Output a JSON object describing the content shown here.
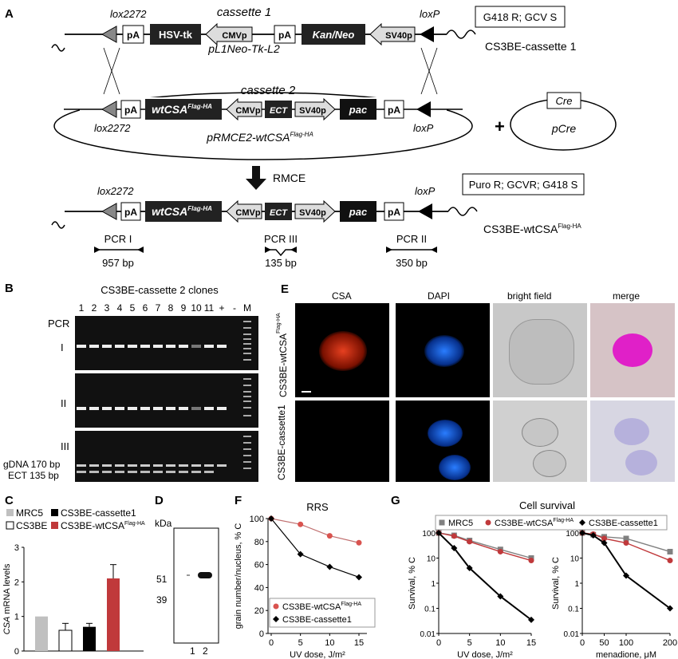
{
  "panels": {
    "A": "A",
    "B": "B",
    "C": "C",
    "D": "D",
    "E": "E",
    "F": "F",
    "G": "G"
  },
  "panelA": {
    "cassette1_title": "cassette 1",
    "cassette1_plasmid": "pL1Neo-Tk-L2",
    "lox2272": "lox2272",
    "loxP": "loxP",
    "pA": "pA",
    "hsv_tk": "HSV-tk",
    "cmvp": "CMVp",
    "kan_neo": "Kan/Neo",
    "sv40p": "SV40p",
    "ect": "ECT",
    "pac": "pac",
    "wtcsa": "wtCSA",
    "wtcsa_sup": "Flag-HA",
    "cassette1_name": "CS3BE-cassette 1",
    "cassette1_pheno": "G418 R; GCV S",
    "cassette2_title": "cassette 2",
    "cassette2_plasmid": "pRMCE2-wtCSA",
    "cassette2_plasmid_sup": "Flag-HA",
    "plus": "+",
    "cre": "Cre",
    "pcre": "pCre",
    "rmce": "RMCE",
    "final_pheno": "Puro R; GCVR; G418 S",
    "final_name": "CS3BE-wtCSA",
    "final_name_sup": "Flag-HA",
    "pcr1": "PCR I",
    "pcr1_bp": "957 bp",
    "pcr3": "PCR III",
    "pcr3_bp": "135 bp",
    "pcr2": "PCR II",
    "pcr2_bp": "350 bp"
  },
  "panelB": {
    "title": "CS3BE-cassette 2 clones",
    "lanes": [
      "1",
      "2",
      "3",
      "4",
      "5",
      "6",
      "7",
      "8",
      "9",
      "10",
      "11",
      "+",
      "-",
      "M"
    ],
    "pcr_label": "PCR",
    "rows": [
      "I",
      "II",
      "III"
    ],
    "band1": "gDNA 170 bp",
    "band2": "ECT 135 bp"
  },
  "panelC": {
    "legend": [
      "MRC5",
      "CS3BE",
      "CS3BE-cassette1",
      "CS3BE-wtCSA"
    ],
    "legend_sup": "Flag-HA",
    "ylabel": "CSA mRNA levels",
    "yticks": [
      "0",
      "1",
      "2",
      "3"
    ]
  },
  "panelD": {
    "unit": "kDa",
    "markers": [
      "51",
      "39"
    ],
    "lanes": [
      "1",
      "2"
    ]
  },
  "panelE": {
    "columns": [
      "CSA",
      "DAPI",
      "bright field",
      "merge"
    ],
    "rows": [
      "CS3BE-wtCSA",
      "CS3BE-cassette1"
    ],
    "row1_sup": "Flag-HA"
  },
  "panelF_text": {
    "ylabel": "grain number/nucleus, % C",
    "legend1": "CS3BE-wtCSA",
    "legend1_sup": "Flag-HA",
    "legend2": "CS3BE-cassette1"
  },
  "panelG_text": {
    "legend": [
      "MRC5",
      "CS3BE-wtCSA",
      "CS3BE-cassette1"
    ],
    "legend_sup": "Flag-HA",
    "ylabel": "Survival, % C",
    "xlabel_left": "UV dose, J/m²",
    "xlabel_right": "menadione, μM"
  },
  "chart_data": [
    {
      "type": "bar",
      "categories": [
        "MRC5",
        "CS3BE",
        "CS3BE-cassette1",
        "CS3BE-wtCSA"
      ],
      "values": [
        1.0,
        0.6,
        0.7,
        2.1
      ],
      "errors": [
        0,
        0.2,
        0.1,
        0.4
      ],
      "ylabel": "CSA mRNA levels",
      "ylim": [
        0,
        3
      ],
      "colors": [
        "#c0c0c0",
        "#ffffff",
        "#000000",
        "#c0393b"
      ]
    },
    {
      "type": "line",
      "title": "RRS",
      "xlabel": "UV dose, J/m²",
      "ylabel": "grain number/nucleus, % C",
      "x": [
        0,
        5,
        10,
        15
      ],
      "ylim": [
        0,
        100
      ],
      "xticks": [
        "0",
        "5",
        "10",
        "15"
      ],
      "yticks": [
        "0",
        "20",
        "40",
        "60",
        "80",
        "100"
      ],
      "series": [
        {
          "name": "CS3BE-wtCSA Flag-HA",
          "values": [
            100,
            95,
            85,
            79
          ],
          "color": "#d9534f",
          "marker": "circle"
        },
        {
          "name": "CS3BE-cassette1",
          "values": [
            100,
            69,
            58,
            49
          ],
          "color": "#000000",
          "marker": "diamond"
        }
      ]
    },
    {
      "type": "line",
      "title": "Cell survival",
      "xlabel": "UV dose, J/m²",
      "ylabel": "Survival, % C",
      "scale": "log",
      "x": [
        0,
        2.5,
        5,
        10,
        15
      ],
      "xticks": [
        "0",
        "5",
        "10",
        "15"
      ],
      "yticks": [
        "0.01",
        "0.1",
        "1",
        "10",
        "100"
      ],
      "series": [
        {
          "name": "MRC5",
          "values": [
            100,
            80,
            50,
            22,
            10
          ],
          "color": "#808080",
          "marker": "square"
        },
        {
          "name": "CS3BE-wtCSA Flag-HA",
          "values": [
            100,
            75,
            45,
            18,
            8
          ],
          "color": "#c0393b",
          "marker": "circle"
        },
        {
          "name": "CS3BE-cassette1",
          "values": [
            100,
            25,
            4,
            0.3,
            0.035
          ],
          "color": "#000000",
          "marker": "diamond"
        }
      ]
    },
    {
      "type": "line",
      "title": "",
      "xlabel": "menadione, μM",
      "ylabel": "Survival, % C",
      "scale": "log",
      "x": [
        0,
        25,
        50,
        100,
        200
      ],
      "xticks": [
        "0",
        "50",
        "100",
        "200"
      ],
      "yticks": [
        "0.01",
        "0.1",
        "1",
        "10",
        "100"
      ],
      "series": [
        {
          "name": "MRC5",
          "values": [
            100,
            85,
            70,
            60,
            18
          ],
          "color": "#808080",
          "marker": "square"
        },
        {
          "name": "CS3BE-wtCSA Flag-HA",
          "values": [
            100,
            90,
            60,
            40,
            8
          ],
          "color": "#c0393b",
          "marker": "circle"
        },
        {
          "name": "CS3BE-cassette1",
          "values": [
            100,
            80,
            40,
            2,
            0.1
          ],
          "color": "#000000",
          "marker": "diamond"
        }
      ]
    }
  ]
}
